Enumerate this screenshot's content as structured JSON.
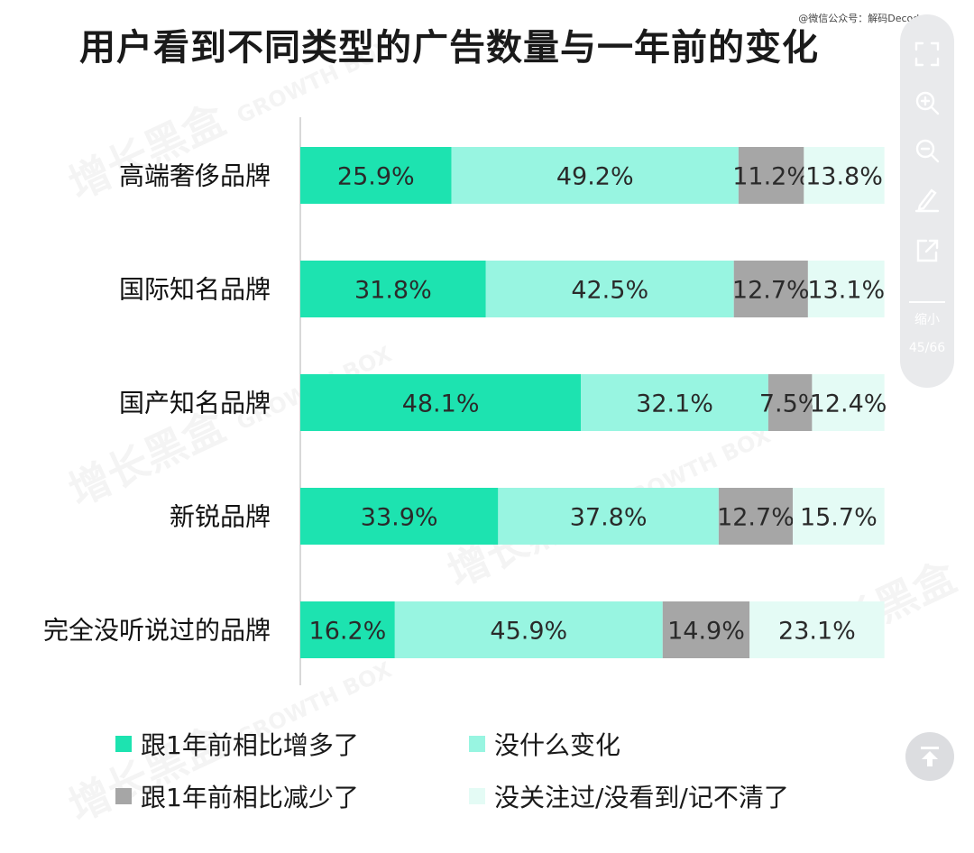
{
  "title": "用户看到不同类型的广告数量与一年前的变化",
  "credit": "@微信公众号：解码Decode",
  "watermark": "增长黑盒 GROWTH BOX",
  "toolbar": {
    "icons": [
      "fullscreen-icon",
      "zoom-in-icon",
      "zoom-out-icon",
      "pen-icon",
      "share-icon"
    ],
    "shrink_label": "缩小",
    "page_indicator": "45/66"
  },
  "colors": {
    "increase": "#1de3b0",
    "no_change": "#98f5e1",
    "decrease": "#a6a6a6",
    "unknown": "#e4fbf5"
  },
  "chart_data": {
    "type": "bar",
    "orientation": "horizontal",
    "stacked": true,
    "percent": true,
    "categories": [
      "高端奢侈品牌",
      "国际知名品牌",
      "国产知名品牌",
      "新锐品牌",
      "完全没听说过的品牌"
    ],
    "labels": [
      [
        "25.9%",
        "49.2%",
        "11.2%",
        "13.8%"
      ],
      [
        "31.8%",
        "42.5%",
        "12.7%",
        "13.1%"
      ],
      [
        "48.1%",
        "32.1%",
        "7.5%",
        "12.4%"
      ],
      [
        "33.9%",
        "37.8%",
        "12.7%",
        "15.7%"
      ],
      [
        "16.2%",
        "45.9%",
        "14.9%",
        "23.1%"
      ]
    ],
    "series": [
      {
        "name": "跟1年前相比增多了",
        "color": "#1de3b0",
        "values": [
          25.9,
          31.8,
          48.1,
          33.9,
          16.2
        ]
      },
      {
        "name": "没什么变化",
        "color": "#98f5e1",
        "values": [
          49.2,
          42.5,
          32.1,
          37.8,
          45.9
        ]
      },
      {
        "name": "跟1年前相比减少了",
        "color": "#a6a6a6",
        "values": [
          11.2,
          12.7,
          7.5,
          12.7,
          14.9
        ]
      },
      {
        "name": "没关注过/没看到/记不清了",
        "color": "#e4fbf5",
        "values": [
          13.8,
          13.1,
          12.4,
          15.7,
          23.1
        ]
      }
    ],
    "xlim": [
      0,
      100
    ],
    "grid": false,
    "legend_position": "bottom"
  }
}
